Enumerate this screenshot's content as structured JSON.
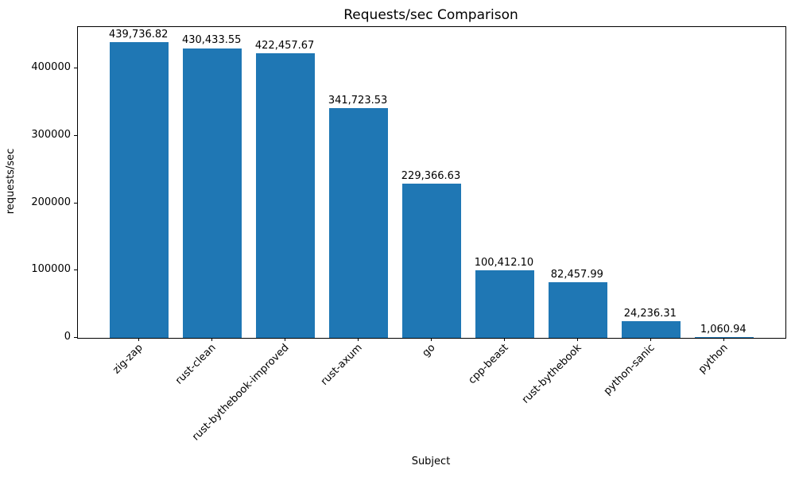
{
  "chart_data": {
    "type": "bar",
    "title": "Requests/sec Comparison",
    "xlabel": "Subject",
    "ylabel": "requests/sec",
    "categories": [
      "zig-zap",
      "rust-clean",
      "rust-bythebook-improved",
      "rust-axum",
      "go",
      "cpp-beast",
      "rust-bythebook",
      "python-sanic",
      "python"
    ],
    "values": [
      439736.82,
      430433.55,
      422457.67,
      341723.53,
      229366.63,
      100412.1,
      82457.99,
      24236.31,
      1060.94
    ],
    "value_labels": [
      "439,736.82",
      "430,433.55",
      "422,457.67",
      "341,723.53",
      "229,366.63",
      "100,412.10",
      "82,457.99",
      "24,236.31",
      "1,060.94"
    ],
    "yticks": [
      0,
      100000,
      200000,
      300000,
      400000
    ],
    "ytick_labels": [
      "0",
      "100000",
      "200000",
      "300000",
      "400000"
    ],
    "ylim": [
      0,
      461724
    ],
    "bar_color": "#1f77b4",
    "bar_width_fraction": 0.8,
    "grid": false,
    "legend_position": "none"
  }
}
